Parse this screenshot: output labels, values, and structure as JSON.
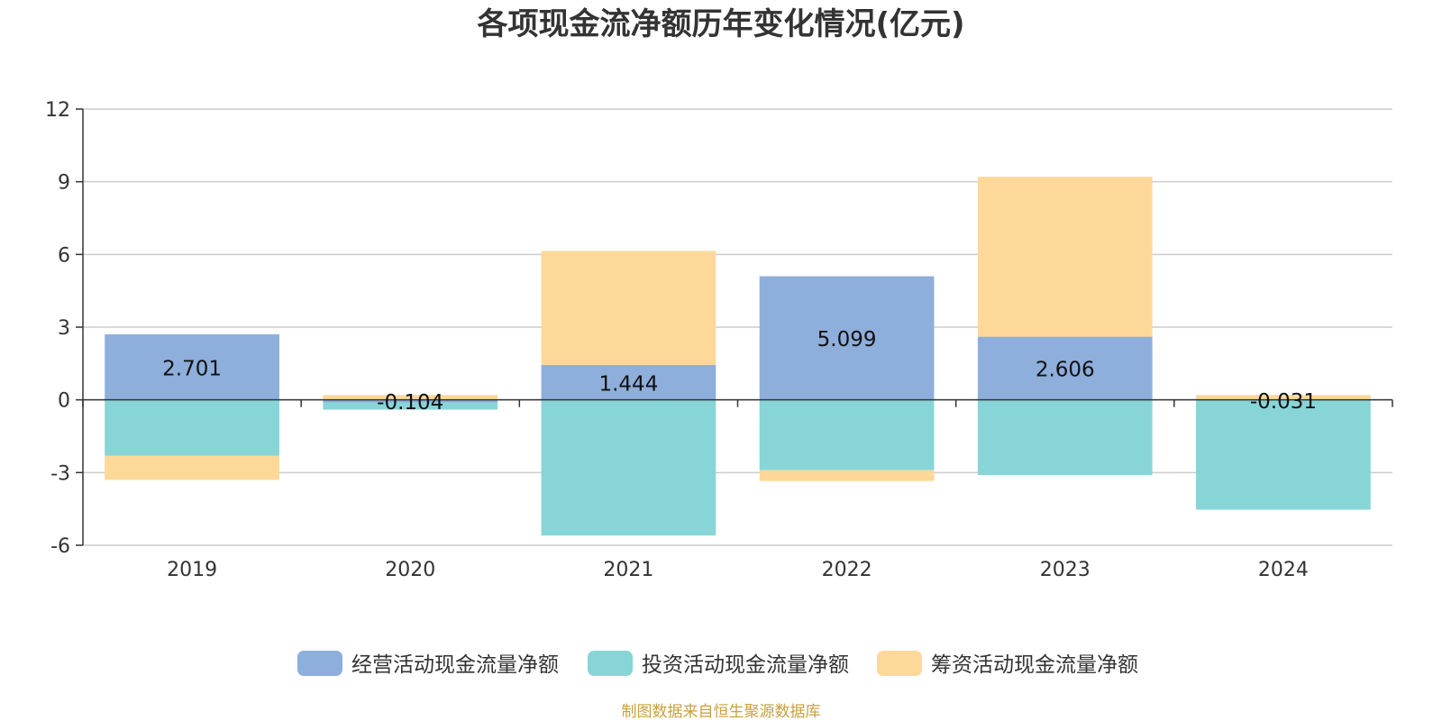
{
  "chart_data": {
    "type": "bar",
    "stacked": true,
    "title": "各项现金流净额历年变化情况(亿元)",
    "categories": [
      "2019",
      "2020",
      "2021",
      "2022",
      "2023",
      "2024"
    ],
    "ylim": [
      -6,
      12
    ],
    "yticks": [
      -6,
      -3,
      0,
      3,
      6,
      9,
      12
    ],
    "grid": true,
    "legend_position": "bottom",
    "series": [
      {
        "name": "经营活动现金流量净额",
        "color": "#8eaedb",
        "values": [
          2.701,
          -0.104,
          1.444,
          5.099,
          2.606,
          -0.031
        ]
      },
      {
        "name": "投资活动现金流量净额",
        "color": "#88d5d8",
        "values": [
          -2.3,
          -0.3,
          -5.6,
          -2.9,
          -3.1,
          -4.5
        ]
      },
      {
        "name": "筹资活动现金流量净额",
        "color": "#fdd899",
        "values": [
          -1.0,
          0.2,
          4.7,
          -0.45,
          6.6,
          0.2
        ]
      }
    ],
    "data_labels": [
      "2.701",
      "-0.104",
      "1.444",
      "5.099",
      "2.606",
      "-0.031"
    ],
    "source": "制图数据来自恒生聚源数据库"
  }
}
